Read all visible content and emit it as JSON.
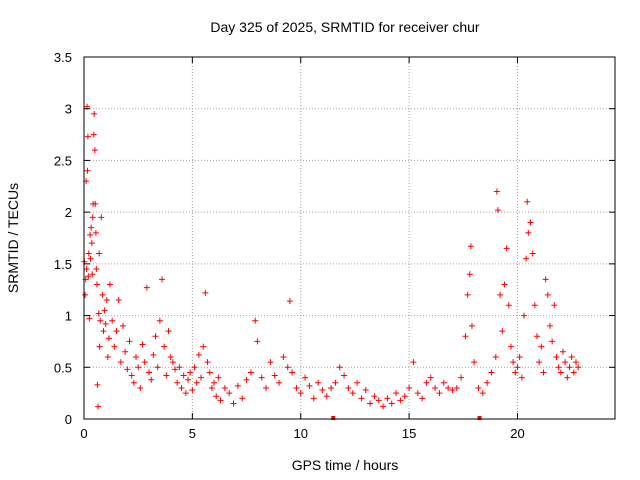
{
  "chart_data": {
    "type": "scatter",
    "title": "Day 325 of 2025, SRMTID for receiver chur",
    "xlabel": "GPS time / hours",
    "ylabel": "SRMTID / TECUs",
    "xlim": [
      0,
      24.5
    ],
    "ylim": [
      0,
      3.5
    ],
    "xticks": [
      0,
      5,
      10,
      15,
      20
    ],
    "xtick_labels": [
      "0",
      "5",
      "10",
      "15",
      "20"
    ],
    "yticks": [
      0,
      0.5,
      1,
      1.5,
      2,
      2.5,
      3,
      3.5
    ],
    "ytick_labels": [
      "0",
      "0.5",
      "1",
      "1.5",
      "2",
      "2.5",
      "3",
      "3.5"
    ],
    "grid": true,
    "marker": "+",
    "color": "#ff0000",
    "gap_markers": [
      11.5,
      18.25
    ],
    "series": [
      {
        "name": "SRMTID",
        "points": [
          [
            0.02,
            1.52
          ],
          [
            0.05,
            1.2
          ],
          [
            0.08,
            1.35
          ],
          [
            0.1,
            2.3
          ],
          [
            0.12,
            1.45
          ],
          [
            0.14,
            3.02
          ],
          [
            0.16,
            2.4
          ],
          [
            0.18,
            2.73
          ],
          [
            0.2,
            1.38
          ],
          [
            0.22,
            1.6
          ],
          [
            0.25,
            0.97
          ],
          [
            0.28,
            1.78
          ],
          [
            0.3,
            1.55
          ],
          [
            0.33,
            1.85
          ],
          [
            0.36,
            1.7
          ],
          [
            0.38,
            1.4
          ],
          [
            0.4,
            1.95
          ],
          [
            0.42,
            2.08
          ],
          [
            0.45,
            2.75
          ],
          [
            0.47,
            2.95
          ],
          [
            0.5,
            2.6
          ],
          [
            0.52,
            2.08
          ],
          [
            0.55,
            1.8
          ],
          [
            0.57,
            1.45
          ],
          [
            0.6,
            1.3
          ],
          [
            0.62,
            0.33
          ],
          [
            0.65,
            0.12
          ],
          [
            0.68,
            1.02
          ],
          [
            0.7,
            1.6
          ],
          [
            0.72,
            0.7
          ],
          [
            0.75,
            0.95
          ],
          [
            0.8,
            1.95
          ],
          [
            0.85,
            1.2
          ],
          [
            0.9,
            0.85
          ],
          [
            0.95,
            1.05
          ],
          [
            1.0,
            0.92
          ],
          [
            1.05,
            1.15
          ],
          [
            1.1,
            0.6
          ],
          [
            1.15,
            0.78
          ],
          [
            1.2,
            1.3
          ],
          [
            1.3,
            0.95
          ],
          [
            1.4,
            0.7
          ],
          [
            1.5,
            0.85
          ],
          [
            1.6,
            1.15
          ],
          [
            1.7,
            0.55
          ],
          [
            1.8,
            0.9
          ],
          [
            1.9,
            0.65
          ],
          [
            2.0,
            0.48
          ],
          [
            2.1,
            0.75
          ],
          [
            2.2,
            0.42
          ],
          [
            2.3,
            0.35
          ],
          [
            2.4,
            0.6
          ],
          [
            2.5,
            0.5
          ],
          [
            2.6,
            0.3
          ],
          [
            2.7,
            0.72
          ],
          [
            2.8,
            0.55
          ],
          [
            2.9,
            1.27
          ],
          [
            3.0,
            0.45
          ],
          [
            3.1,
            0.38
          ],
          [
            3.2,
            0.62
          ],
          [
            3.3,
            0.8
          ],
          [
            3.4,
            0.5
          ],
          [
            3.5,
            0.95
          ],
          [
            3.6,
            1.35
          ],
          [
            3.7,
            0.7
          ],
          [
            3.8,
            0.42
          ],
          [
            3.9,
            0.85
          ],
          [
            4.0,
            0.6
          ],
          [
            4.1,
            0.55
          ],
          [
            4.2,
            0.48
          ],
          [
            4.3,
            0.35
          ],
          [
            4.4,
            0.5
          ],
          [
            4.5,
            0.3
          ],
          [
            4.6,
            0.42
          ],
          [
            4.7,
            0.25
          ],
          [
            4.8,
            0.38
          ],
          [
            4.9,
            0.45
          ],
          [
            5.0,
            0.28
          ],
          [
            5.1,
            0.5
          ],
          [
            5.2,
            0.35
          ],
          [
            5.3,
            0.62
          ],
          [
            5.4,
            0.4
          ],
          [
            5.5,
            0.7
          ],
          [
            5.6,
            1.22
          ],
          [
            5.7,
            0.55
          ],
          [
            5.8,
            0.45
          ],
          [
            5.9,
            0.3
          ],
          [
            6.0,
            0.35
          ],
          [
            6.1,
            0.22
          ],
          [
            6.2,
            0.4
          ],
          [
            6.3,
            0.18
          ],
          [
            6.5,
            0.3
          ],
          [
            6.7,
            0.25
          ],
          [
            6.9,
            0.15
          ],
          [
            7.1,
            0.32
          ],
          [
            7.3,
            0.2
          ],
          [
            7.5,
            0.38
          ],
          [
            7.7,
            0.45
          ],
          [
            7.9,
            0.95
          ],
          [
            8.0,
            0.75
          ],
          [
            8.2,
            0.4
          ],
          [
            8.4,
            0.3
          ],
          [
            8.6,
            0.55
          ],
          [
            8.8,
            0.42
          ],
          [
            9.0,
            0.35
          ],
          [
            9.2,
            0.6
          ],
          [
            9.4,
            0.5
          ],
          [
            9.5,
            1.14
          ],
          [
            9.6,
            0.45
          ],
          [
            9.8,
            0.3
          ],
          [
            10.0,
            0.25
          ],
          [
            10.2,
            0.4
          ],
          [
            10.4,
            0.32
          ],
          [
            10.6,
            0.2
          ],
          [
            10.8,
            0.35
          ],
          [
            11.0,
            0.28
          ],
          [
            11.2,
            0.22
          ],
          [
            11.4,
            0.3
          ],
          [
            11.6,
            0.35
          ],
          [
            11.8,
            0.5
          ],
          [
            12.0,
            0.42
          ],
          [
            12.2,
            0.3
          ],
          [
            12.4,
            0.25
          ],
          [
            12.6,
            0.35
          ],
          [
            12.8,
            0.2
          ],
          [
            13.0,
            0.28
          ],
          [
            13.2,
            0.15
          ],
          [
            13.4,
            0.22
          ],
          [
            13.6,
            0.18
          ],
          [
            13.8,
            0.12
          ],
          [
            14.0,
            0.2
          ],
          [
            14.2,
            0.15
          ],
          [
            14.4,
            0.25
          ],
          [
            14.6,
            0.18
          ],
          [
            14.8,
            0.22
          ],
          [
            15.0,
            0.3
          ],
          [
            15.2,
            0.55
          ],
          [
            15.4,
            0.25
          ],
          [
            15.6,
            0.2
          ],
          [
            15.8,
            0.35
          ],
          [
            16.0,
            0.4
          ],
          [
            16.2,
            0.3
          ],
          [
            16.4,
            0.25
          ],
          [
            16.6,
            0.35
          ],
          [
            16.8,
            0.3
          ],
          [
            17.0,
            0.28
          ],
          [
            17.2,
            0.3
          ],
          [
            17.4,
            0.4
          ],
          [
            17.6,
            0.8
          ],
          [
            17.7,
            1.2
          ],
          [
            17.8,
            1.4
          ],
          [
            17.85,
            1.67
          ],
          [
            17.9,
            0.9
          ],
          [
            18.0,
            0.55
          ],
          [
            18.2,
            0.3
          ],
          [
            18.4,
            0.25
          ],
          [
            18.6,
            0.35
          ],
          [
            18.8,
            0.45
          ],
          [
            19.0,
            0.6
          ],
          [
            19.05,
            2.2
          ],
          [
            19.1,
            2.02
          ],
          [
            19.2,
            1.2
          ],
          [
            19.3,
            0.85
          ],
          [
            19.4,
            1.3
          ],
          [
            19.5,
            1.65
          ],
          [
            19.6,
            1.1
          ],
          [
            19.7,
            0.7
          ],
          [
            19.8,
            0.55
          ],
          [
            19.9,
            0.45
          ],
          [
            20.0,
            0.5
          ],
          [
            20.1,
            0.6
          ],
          [
            20.2,
            0.4
          ],
          [
            20.3,
            1.0
          ],
          [
            20.4,
            1.55
          ],
          [
            20.45,
            2.1
          ],
          [
            20.5,
            1.8
          ],
          [
            20.6,
            1.9
          ],
          [
            20.7,
            1.6
          ],
          [
            20.8,
            1.1
          ],
          [
            20.9,
            0.8
          ],
          [
            21.0,
            0.55
          ],
          [
            21.1,
            0.7
          ],
          [
            21.2,
            0.45
          ],
          [
            21.3,
            1.35
          ],
          [
            21.4,
            1.2
          ],
          [
            21.5,
            0.9
          ],
          [
            21.6,
            0.75
          ],
          [
            21.7,
            1.1
          ],
          [
            21.8,
            0.6
          ],
          [
            21.9,
            0.5
          ],
          [
            22.0,
            0.45
          ],
          [
            22.1,
            0.65
          ],
          [
            22.2,
            0.55
          ],
          [
            22.3,
            0.4
          ],
          [
            22.4,
            0.5
          ],
          [
            22.5,
            0.6
          ],
          [
            22.6,
            0.45
          ],
          [
            22.7,
            0.55
          ],
          [
            22.8,
            0.5
          ]
        ]
      }
    ]
  }
}
